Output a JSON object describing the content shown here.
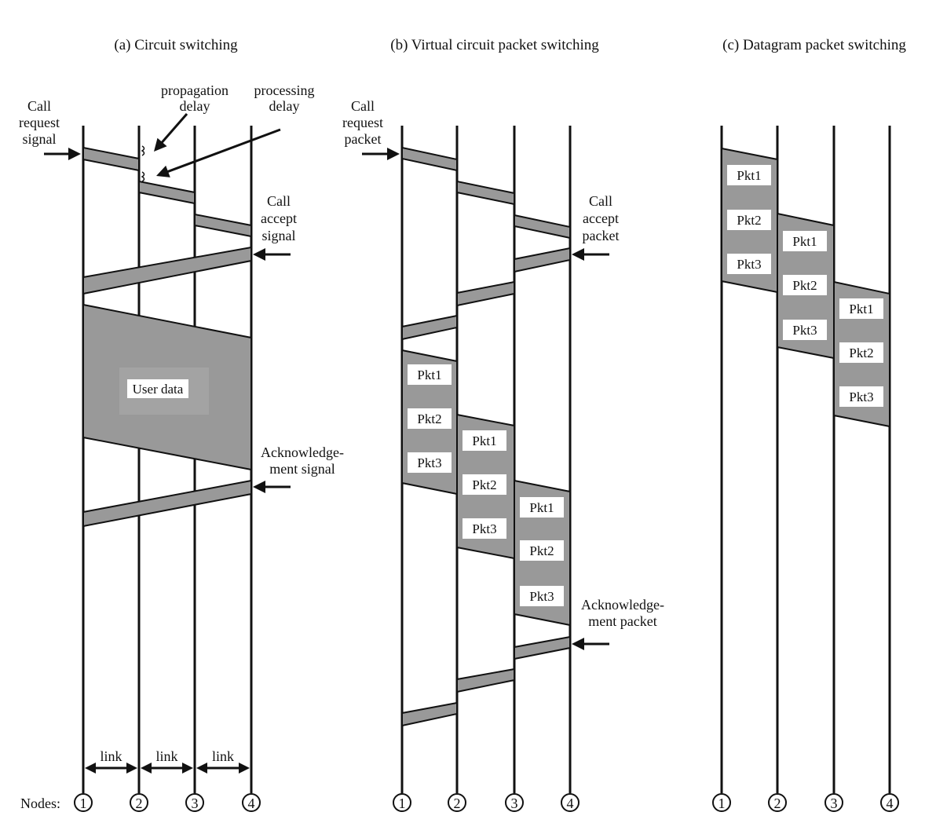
{
  "colors": {
    "fill": "#999999",
    "stroke": "#111111",
    "line": "#111111",
    "label_bg": "#ffffff"
  },
  "panel_a": {
    "title": "(a) Circuit switching",
    "call_request": [
      "Call",
      "request",
      "signal"
    ],
    "propagation_delay": [
      "propagation",
      "delay"
    ],
    "processing_delay": [
      "processing",
      "delay"
    ],
    "call_accept": [
      "Call",
      "accept",
      "signal"
    ],
    "user_data": "User data",
    "ack": [
      "Acknowledge-",
      "ment signal"
    ],
    "link_labels": [
      "link",
      "link",
      "link"
    ]
  },
  "panel_b": {
    "title": "(b) Virtual circuit packet switching",
    "call_request": [
      "Call",
      "request",
      "packet"
    ],
    "call_accept": [
      "Call",
      "accept",
      "packet"
    ],
    "ack": [
      "Acknowledge-",
      "ment packet"
    ],
    "packets": [
      "Pkt1",
      "Pkt2",
      "Pkt3"
    ]
  },
  "panel_c": {
    "title": "(c) Datagram packet switching",
    "packets": [
      "Pkt1",
      "Pkt2",
      "Pkt3"
    ]
  },
  "nodes_label": "Nodes:",
  "node_numbers": [
    "1",
    "2",
    "3",
    "4"
  ]
}
